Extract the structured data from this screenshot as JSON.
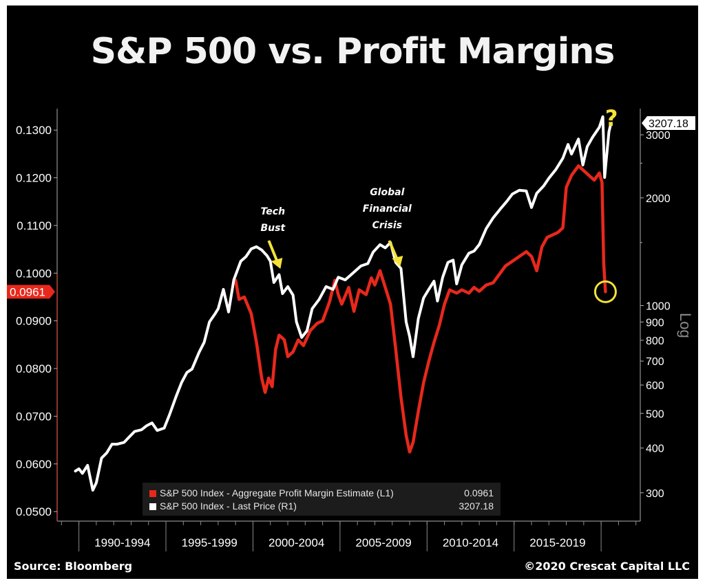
{
  "title": "S&P 500 vs. Profit Margins",
  "source": "Source: Bloomberg",
  "copyright": "©2020 Crescat Capital LLC",
  "colors": {
    "margin_series": "#e8281c",
    "price_series": "#ffffff",
    "highlight": "#f4e23a",
    "background": "#000000"
  },
  "chart_data": {
    "type": "line",
    "title": "S&P 500 vs. Profit Margins",
    "x_tick_labels": [
      "1990-1994",
      "1995-1999",
      "2000-2004",
      "2005-2009",
      "2010-2014",
      "2015-2019"
    ],
    "left_axis": {
      "ticks": [
        "0.0500",
        "0.0600",
        "0.0700",
        "0.0800",
        "0.0900",
        "0.1000",
        "0.1100",
        "0.1200",
        "0.1300"
      ],
      "range": [
        0.048,
        0.1345
      ]
    },
    "right_axis": {
      "scale": "log",
      "label": "Log",
      "ticks": [
        "300",
        "400",
        "500",
        "600",
        "700",
        "800",
        "900",
        "1000",
        "2000",
        "3000"
      ],
      "range": [
        250,
        3550
      ]
    },
    "current_labels": {
      "left": "0.0961",
      "right": "3207.18"
    },
    "annotations": [
      {
        "text_lines": [
          "Tech",
          "Bust"
        ],
        "at_year": 2001.3
      },
      {
        "text_lines": [
          "Global",
          "Financial",
          "Crisis"
        ],
        "at_year": 2008.3
      },
      {
        "text": "?",
        "at_year": 2020.2
      }
    ],
    "legend": [
      {
        "label": "S&P 500 Index - Aggregate Profit Margin Estimate (L1)",
        "value": "0.0961"
      },
      {
        "label": "S&P 500 Index - Last Price (R1)",
        "value": "3207.18"
      }
    ],
    "series": [
      {
        "name": "S&P 500 Index - Aggregate Profit Margin Estimate (L1)",
        "axis": "left",
        "points": [
          [
            1999.0,
            0.0985
          ],
          [
            1999.2,
            0.0945
          ],
          [
            1999.5,
            0.095
          ],
          [
            1999.9,
            0.0915
          ],
          [
            2000.2,
            0.0855
          ],
          [
            2000.5,
            0.078
          ],
          [
            2000.7,
            0.075
          ],
          [
            2000.9,
            0.078
          ],
          [
            2001.1,
            0.0762
          ],
          [
            2001.3,
            0.084
          ],
          [
            2001.5,
            0.087
          ],
          [
            2001.8,
            0.086
          ],
          [
            2002.0,
            0.0825
          ],
          [
            2002.3,
            0.0835
          ],
          [
            2002.6,
            0.086
          ],
          [
            2002.9,
            0.0848
          ],
          [
            2003.3,
            0.088
          ],
          [
            2003.7,
            0.0895
          ],
          [
            2004.0,
            0.09
          ],
          [
            2004.4,
            0.094
          ],
          [
            2004.7,
            0.0985
          ],
          [
            2004.9,
            0.0955
          ],
          [
            2005.1,
            0.0935
          ],
          [
            2005.5,
            0.097
          ],
          [
            2005.8,
            0.092
          ],
          [
            2006.1,
            0.0965
          ],
          [
            2006.5,
            0.0955
          ],
          [
            2006.8,
            0.099
          ],
          [
            2007.0,
            0.0975
          ],
          [
            2007.3,
            0.1005
          ],
          [
            2007.6,
            0.097
          ],
          [
            2007.9,
            0.0935
          ],
          [
            2008.2,
            0.084
          ],
          [
            2008.5,
            0.074
          ],
          [
            2008.8,
            0.066
          ],
          [
            2009.0,
            0.0625
          ],
          [
            2009.2,
            0.0645
          ],
          [
            2009.5,
            0.071
          ],
          [
            2009.8,
            0.077
          ],
          [
            2010.1,
            0.0815
          ],
          [
            2010.4,
            0.0855
          ],
          [
            2010.7,
            0.089
          ],
          [
            2011.0,
            0.0935
          ],
          [
            2011.3,
            0.0965
          ],
          [
            2011.7,
            0.0958
          ],
          [
            2012.0,
            0.0965
          ],
          [
            2012.4,
            0.0958
          ],
          [
            2012.7,
            0.097
          ],
          [
            2013.0,
            0.0962
          ],
          [
            2013.4,
            0.0975
          ],
          [
            2013.8,
            0.098
          ],
          [
            2014.1,
            0.0995
          ],
          [
            2014.5,
            0.1015
          ],
          [
            2014.9,
            0.1025
          ],
          [
            2015.3,
            0.1035
          ],
          [
            2015.7,
            0.1045
          ],
          [
            2016.0,
            0.1035
          ],
          [
            2016.3,
            0.1005
          ],
          [
            2016.6,
            0.1055
          ],
          [
            2016.9,
            0.1075
          ],
          [
            2017.2,
            0.108
          ],
          [
            2017.5,
            0.1085
          ],
          [
            2017.8,
            0.1095
          ],
          [
            2018.0,
            0.118
          ],
          [
            2018.3,
            0.1205
          ],
          [
            2018.7,
            0.1225
          ],
          [
            2019.0,
            0.1215
          ],
          [
            2019.3,
            0.1205
          ],
          [
            2019.6,
            0.1195
          ],
          [
            2019.9,
            0.121
          ],
          [
            2020.05,
            0.119
          ],
          [
            2020.15,
            0.102
          ],
          [
            2020.25,
            0.0961
          ]
        ]
      },
      {
        "name": "S&P 500 Index - Last Price (R1)",
        "axis": "right",
        "points": [
          [
            1989.8,
            345
          ],
          [
            1990.0,
            350
          ],
          [
            1990.2,
            340
          ],
          [
            1990.5,
            358
          ],
          [
            1990.8,
            305
          ],
          [
            1991.0,
            320
          ],
          [
            1991.3,
            375
          ],
          [
            1991.6,
            388
          ],
          [
            1991.9,
            410
          ],
          [
            1992.2,
            410
          ],
          [
            1992.6,
            415
          ],
          [
            1992.9,
            430
          ],
          [
            1993.2,
            445
          ],
          [
            1993.6,
            450
          ],
          [
            1993.9,
            462
          ],
          [
            1994.2,
            470
          ],
          [
            1994.5,
            448
          ],
          [
            1994.9,
            455
          ],
          [
            1995.2,
            495
          ],
          [
            1995.6,
            560
          ],
          [
            1995.9,
            610
          ],
          [
            1996.2,
            650
          ],
          [
            1996.5,
            665
          ],
          [
            1996.9,
            740
          ],
          [
            1997.2,
            790
          ],
          [
            1997.5,
            900
          ],
          [
            1997.8,
            945
          ],
          [
            1998.0,
            980
          ],
          [
            1998.3,
            1110
          ],
          [
            1998.6,
            960
          ],
          [
            1998.9,
            1180
          ],
          [
            1999.3,
            1330
          ],
          [
            1999.6,
            1370
          ],
          [
            1999.9,
            1440
          ],
          [
            2000.2,
            1460
          ],
          [
            2000.5,
            1430
          ],
          [
            2000.8,
            1380
          ],
          [
            2001.0,
            1330
          ],
          [
            2001.2,
            1160
          ],
          [
            2001.5,
            1220
          ],
          [
            2001.7,
            1080
          ],
          [
            2002.0,
            1130
          ],
          [
            2002.3,
            1070
          ],
          [
            2002.5,
            900
          ],
          [
            2002.8,
            815
          ],
          [
            2003.1,
            850
          ],
          [
            2003.4,
            980
          ],
          [
            2003.8,
            1040
          ],
          [
            2004.2,
            1130
          ],
          [
            2004.6,
            1110
          ],
          [
            2004.9,
            1200
          ],
          [
            2005.3,
            1180
          ],
          [
            2005.8,
            1240
          ],
          [
            2006.2,
            1290
          ],
          [
            2006.6,
            1310
          ],
          [
            2006.9,
            1410
          ],
          [
            2007.3,
            1480
          ],
          [
            2007.6,
            1450
          ],
          [
            2007.9,
            1500
          ],
          [
            2008.2,
            1320
          ],
          [
            2008.5,
            1270
          ],
          [
            2008.8,
            900
          ],
          [
            2009.0,
            820
          ],
          [
            2009.2,
            720
          ],
          [
            2009.5,
            920
          ],
          [
            2009.8,
            1050
          ],
          [
            2010.1,
            1110
          ],
          [
            2010.4,
            1170
          ],
          [
            2010.6,
            1030
          ],
          [
            2010.9,
            1200
          ],
          [
            2011.2,
            1320
          ],
          [
            2011.5,
            1340
          ],
          [
            2011.7,
            1150
          ],
          [
            2012.0,
            1300
          ],
          [
            2012.4,
            1400
          ],
          [
            2012.7,
            1420
          ],
          [
            2013.0,
            1480
          ],
          [
            2013.4,
            1640
          ],
          [
            2013.8,
            1760
          ],
          [
            2014.2,
            1860
          ],
          [
            2014.6,
            1960
          ],
          [
            2014.9,
            2050
          ],
          [
            2015.3,
            2100
          ],
          [
            2015.7,
            2090
          ],
          [
            2016.0,
            1880
          ],
          [
            2016.3,
            2060
          ],
          [
            2016.7,
            2160
          ],
          [
            2017.0,
            2270
          ],
          [
            2017.4,
            2400
          ],
          [
            2017.8,
            2580
          ],
          [
            2018.1,
            2820
          ],
          [
            2018.3,
            2650
          ],
          [
            2018.7,
            2920
          ],
          [
            2018.95,
            2470
          ],
          [
            2019.2,
            2780
          ],
          [
            2019.5,
            2950
          ],
          [
            2019.9,
            3150
          ],
          [
            2020.1,
            3370
          ],
          [
            2020.2,
            2280
          ],
          [
            2020.3,
            2570
          ],
          [
            2020.45,
            3060
          ],
          [
            2020.55,
            3207.18
          ]
        ]
      }
    ]
  }
}
